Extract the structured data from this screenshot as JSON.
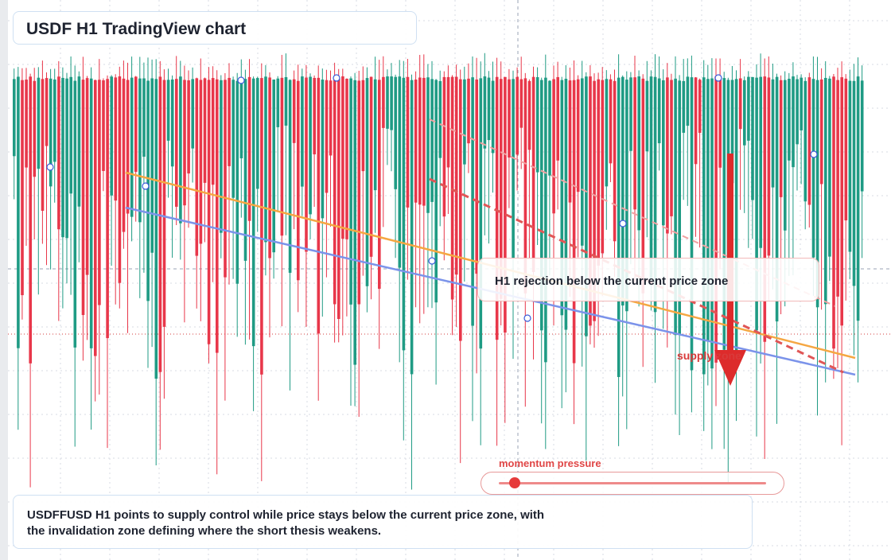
{
  "header": {
    "title": "USDF H1 TradingView chart"
  },
  "callout": {
    "text": "H1 rejection below the current price zone"
  },
  "supply_label": "supply zone",
  "momentum": {
    "label": "momentum pressure",
    "level": 0.06
  },
  "summary": {
    "line1": "USDFFUSD H1 points to supply control while price stays below the current price zone, with",
    "line2": "the invalidation zone defining where the short thesis weakens."
  },
  "colors": {
    "bull": "#1f9b84",
    "bear": "#e8374a",
    "trend_orange": "#f5a742",
    "trend_blue": "#7b93ea",
    "dashed_red": "#e05656",
    "arrow_red": "#dd2b2b",
    "grid": "#d7dbe3",
    "price_line": "#d33b3b"
  },
  "chart_data": {
    "type": "candlestick",
    "timeframe": "H1",
    "symbol": "USDFFUSD",
    "annotations": [
      "H1 rejection below the current price zone",
      "supply zone",
      "momentum pressure"
    ]
  }
}
